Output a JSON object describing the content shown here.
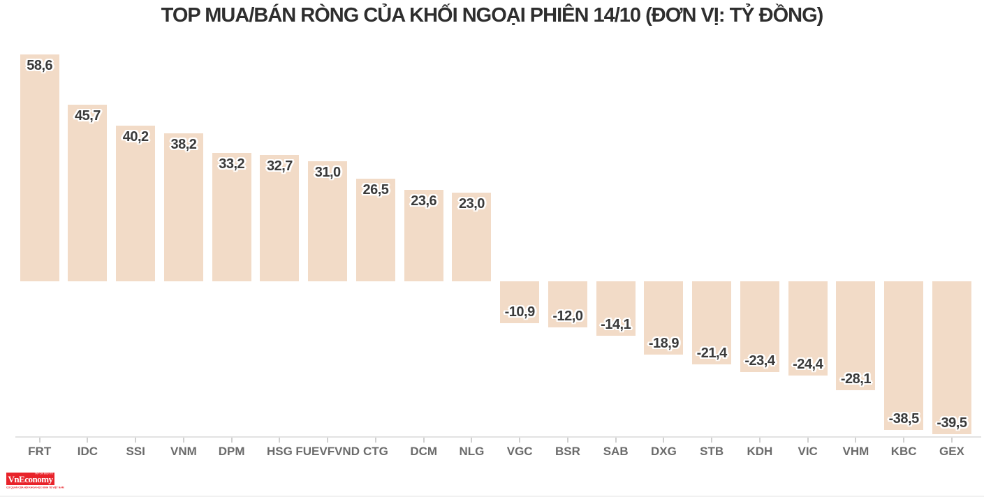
{
  "chart_data": {
    "type": "bar",
    "title": "TOP MUA/BÁN RÒNG CỦA KHỐI NGOẠI PHIÊN 14/10 (ĐƠN VỊ: TỶ ĐỒNG)",
    "unit": "tỷ đồng",
    "categories": [
      "FRT",
      "IDC",
      "SSI",
      "VNM",
      "DPM",
      "HSG",
      "FUEVFVND",
      "CTG",
      "DCM",
      "NLG",
      "VGC",
      "BSR",
      "SAB",
      "DXG",
      "STB",
      "KDH",
      "VIC",
      "VHM",
      "KBC",
      "GEX"
    ],
    "values": [
      58.6,
      45.7,
      40.2,
      38.2,
      33.2,
      32.7,
      31.0,
      26.5,
      23.6,
      23.0,
      -10.9,
      -12.0,
      -14.1,
      -18.9,
      -21.4,
      -23.4,
      -24.4,
      -28.1,
      -38.5,
      -39.5
    ],
    "value_labels": [
      "58,6",
      "45,7",
      "40,2",
      "38,2",
      "33,2",
      "32,7",
      "31,0",
      "26,5",
      "23,6",
      "23,0",
      "-10,9",
      "-12,0",
      "-14,1",
      "-18,9",
      "-21,4",
      "-23,4",
      "-24,4",
      "-28,1",
      "-38,5",
      "-39,5"
    ],
    "ylim": [
      -45,
      62
    ],
    "grid": false,
    "legend": "none",
    "colors": {
      "bar": "#f2dbc7",
      "value_label": "#3a3a3a",
      "value_label_outline": "#ffffff",
      "category_label": "#6b6b6b",
      "axis_line": "#e2e2e2",
      "tick": "#d0d0d0",
      "title": "#2e2e2e"
    }
  },
  "branding": {
    "logo_text": "VnEconomy",
    "logo_top_text": "TẠP CHÍ ĐIỆN TỬ",
    "logo_sub_text": "CƠ QUAN CỦA HỘI KHOA HỌC KINH TẾ VIỆT NAM",
    "logo_bg": "#e8232a",
    "logo_text_color": "#ffffff",
    "logo_sub_color": "#e8232a"
  }
}
